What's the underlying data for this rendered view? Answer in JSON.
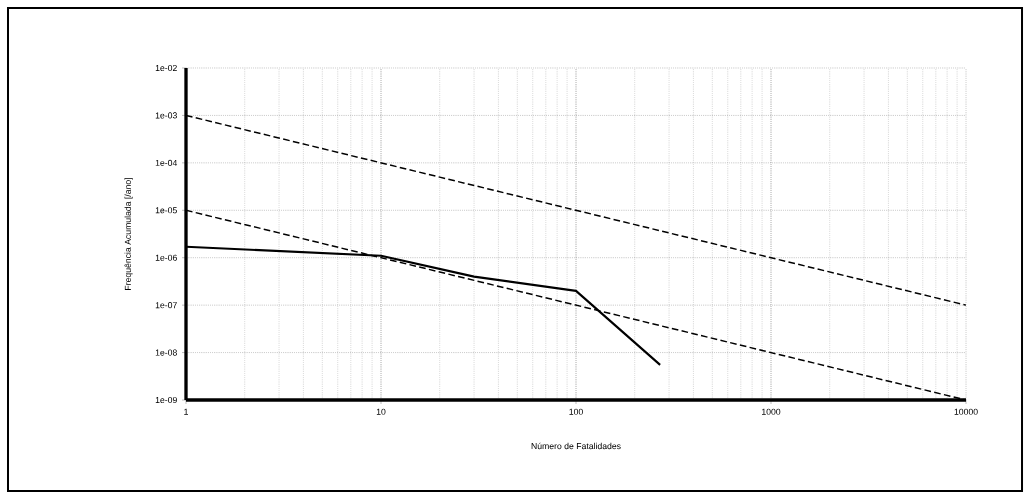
{
  "chart_data": {
    "type": "line",
    "xlabel": "Número de Fatalidades",
    "ylabel": "Frequência Acumulada [/ano]",
    "log": "xy",
    "grid": true,
    "xlim": [
      1,
      10000
    ],
    "ylim": [
      1e-09,
      0.01
    ],
    "xticks": [
      1,
      10,
      100,
      1000,
      10000
    ],
    "yticks": [
      {
        "value": 1e-09,
        "label": "1e-09"
      },
      {
        "value": 1e-08,
        "label": "1e-08"
      },
      {
        "value": 1e-07,
        "label": "1e-07"
      },
      {
        "value": 1e-06,
        "label": "1e-06"
      },
      {
        "value": 1e-05,
        "label": "1e-05"
      },
      {
        "value": 0.0001,
        "label": "1e-04"
      },
      {
        "value": 0.001,
        "label": "1e-03"
      },
      {
        "value": 0.01,
        "label": "1e-02"
      }
    ],
    "series": [
      {
        "color": "#000000",
        "line_style": "dashed",
        "x": [
          1,
          10000
        ],
        "values": [
          0.001,
          1e-07
        ]
      },
      {
        "color": "#000000",
        "line_style": "dashed",
        "x": [
          1,
          10000
        ],
        "values": [
          1e-05,
          1e-09
        ]
      },
      {
        "color": "#000000",
        "line_style": "solid",
        "x": [
          1,
          10,
          30,
          100,
          270
        ],
        "values": [
          1.7e-06,
          1.1e-06,
          4e-07,
          2e-07,
          5.5e-09
        ]
      }
    ]
  }
}
